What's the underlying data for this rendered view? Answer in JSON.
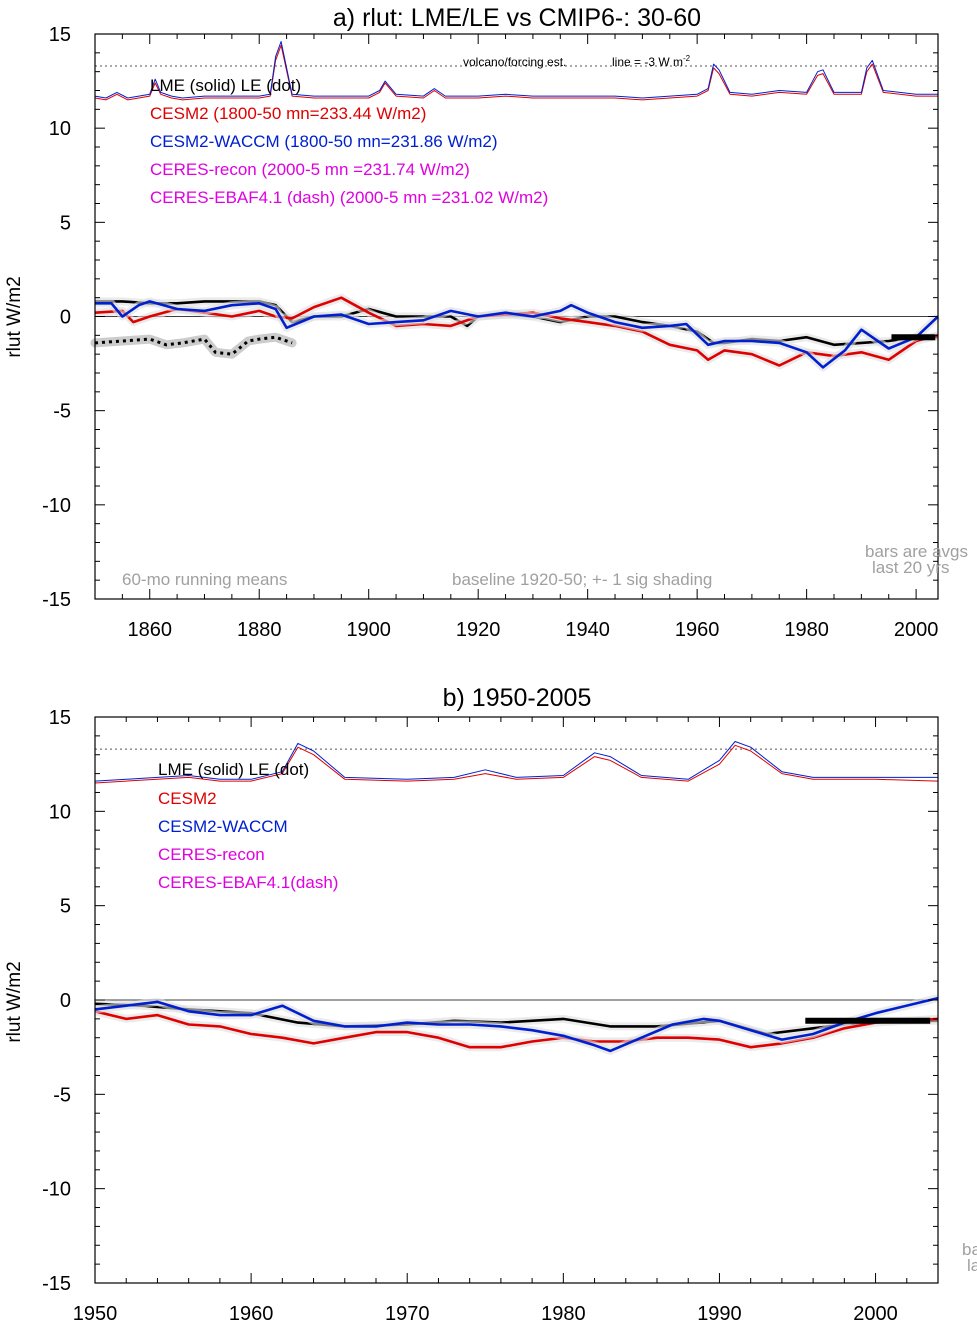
{
  "chart_data": [
    {
      "type": "line",
      "title": "a) rlut: LME/LE vs CMIP6-: 30-60",
      "ylabel": "rlut W/m2",
      "xlim": [
        1850,
        2004
      ],
      "ylim": [
        -15,
        15
      ],
      "xticks": [
        1860,
        1880,
        1900,
        1920,
        1940,
        1960,
        1980,
        2000
      ],
      "yticks": [
        15,
        10,
        5,
        0,
        -5,
        -10,
        -15
      ],
      "volcano_ref": 13.3,
      "annotations": {
        "volcano": "volcano/forcing est.",
        "line_note": "line = -3 W m",
        "line_note_sup": "-2",
        "running": "60-mo running means",
        "baseline": "baseline 1920-50; +- 1 sig shading",
        "bars1": "bars are avgs",
        "bars2": "last 20 yrs"
      },
      "legend": [
        {
          "text": "LME (solid)    LE (dot)",
          "color": "#000000"
        },
        {
          "text": "CESM2 (1800-50 mn=233.44 W/m2)",
          "color": "#e00000"
        },
        {
          "text": "CESM2-WACCM (1800-50 mn=231.86 W/m2)",
          "color": "#0020d0"
        },
        {
          "text": "CERES-recon (2000-5 mn =231.74 W/m2)",
          "color": "#e000e0"
        },
        {
          "text": "CERES-EBAF4.1 (dash) (2000-5 mn =231.02 W/m2)",
          "color": "#e000e0"
        }
      ],
      "series": [
        {
          "color": "#000000",
          "x": [
            1850,
            1855,
            1860,
            1865,
            1870,
            1875,
            1880,
            1883,
            1886,
            1890,
            1895,
            1900,
            1905,
            1910,
            1915,
            1918,
            1920,
            1925,
            1930,
            1935,
            1940,
            1945,
            1950,
            1955,
            1960,
            1963,
            1965,
            1970,
            1975,
            1980,
            1985,
            1990,
            1995,
            2000,
            2004
          ],
          "y": [
            0.8,
            0.8,
            0.7,
            0.7,
            0.8,
            0.8,
            0.8,
            0.6,
            -0.3,
            0.0,
            0.0,
            0.4,
            0.0,
            0.0,
            0.0,
            -0.5,
            0.0,
            0.1,
            0.0,
            -0.3,
            0.0,
            0.0,
            -0.3,
            -0.5,
            -0.8,
            -1.4,
            -1.4,
            -1.2,
            -1.3,
            -1.1,
            -1.5,
            -1.4,
            -1.3,
            -1.1,
            -1.1
          ]
        },
        {
          "color": "#e00000",
          "x": [
            1850,
            1855,
            1857,
            1860,
            1865,
            1870,
            1875,
            1880,
            1883,
            1886,
            1890,
            1895,
            1900,
            1905,
            1910,
            1915,
            1920,
            1925,
            1930,
            1935,
            1940,
            1945,
            1950,
            1955,
            1960,
            1962,
            1965,
            1970,
            1975,
            1980,
            1985,
            1990,
            1995,
            2000,
            2004
          ],
          "y": [
            0.2,
            0.3,
            -0.3,
            0.0,
            0.4,
            0.2,
            0.0,
            0.3,
            0.0,
            -0.1,
            0.5,
            1.0,
            0.2,
            -0.5,
            -0.4,
            -0.5,
            0.0,
            0.1,
            0.2,
            -0.1,
            -0.3,
            -0.5,
            -0.8,
            -1.5,
            -1.8,
            -2.3,
            -1.8,
            -2.0,
            -2.6,
            -1.9,
            -2.1,
            -1.9,
            -2.3,
            -1.3,
            -1.0
          ]
        },
        {
          "color": "#0020d0",
          "x": [
            1850,
            1853,
            1855,
            1858,
            1860,
            1865,
            1870,
            1875,
            1880,
            1883,
            1885,
            1890,
            1895,
            1900,
            1905,
            1910,
            1915,
            1920,
            1925,
            1930,
            1935,
            1937,
            1940,
            1945,
            1950,
            1955,
            1958,
            1962,
            1965,
            1970,
            1975,
            1980,
            1983,
            1987,
            1990,
            1995,
            2000,
            2004
          ],
          "y": [
            0.7,
            0.7,
            0.0,
            0.6,
            0.8,
            0.4,
            0.3,
            0.6,
            0.7,
            0.4,
            -0.6,
            0.0,
            0.1,
            -0.4,
            -0.3,
            -0.2,
            0.3,
            0.0,
            0.2,
            0.0,
            0.3,
            0.6,
            0.2,
            -0.3,
            -0.6,
            -0.5,
            -0.4,
            -1.5,
            -1.3,
            -1.3,
            -1.4,
            -1.9,
            -2.7,
            -1.8,
            -0.7,
            -1.7,
            -1.1,
            0.0
          ]
        },
        {
          "color": "#000000",
          "dotted": true,
          "width": 3,
          "x": [
            1850,
            1855,
            1860,
            1863,
            1866,
            1870,
            1872,
            1875,
            1878,
            1880,
            1883,
            1886
          ],
          "y": [
            -1.4,
            -1.3,
            -1.2,
            -1.5,
            -1.4,
            -1.2,
            -1.9,
            -2.0,
            -1.3,
            -1.2,
            -1.1,
            -1.4
          ]
        },
        {
          "color": "#e00000",
          "width": 1,
          "x": [
            1850,
            1852,
            1854,
            1856,
            1858,
            1860,
            1861,
            1862,
            1864,
            1866,
            1870,
            1875,
            1880,
            1882,
            1883,
            1884,
            1886,
            1890,
            1895,
            1900,
            1902,
            1903,
            1905,
            1910,
            1912,
            1914,
            1920,
            1925,
            1930,
            1935,
            1940,
            1945,
            1950,
            1955,
            1960,
            1962,
            1963,
            1964,
            1966,
            1970,
            1975,
            1980,
            1982,
            1983,
            1985,
            1990,
            1991,
            1992,
            1994,
            2000,
            2004
          ],
          "y": [
            11.6,
            11.5,
            11.8,
            11.5,
            11.6,
            11.7,
            12.4,
            11.8,
            11.6,
            11.5,
            11.6,
            11.6,
            11.6,
            11.7,
            13.6,
            14.4,
            11.7,
            11.6,
            11.6,
            11.6,
            11.9,
            12.4,
            11.7,
            11.6,
            12.0,
            11.6,
            11.6,
            11.7,
            11.6,
            11.6,
            11.6,
            11.6,
            11.5,
            11.6,
            11.7,
            12.0,
            13.2,
            12.9,
            11.8,
            11.7,
            11.9,
            11.8,
            12.8,
            12.9,
            11.8,
            11.8,
            13.0,
            13.4,
            11.9,
            11.7,
            11.7
          ]
        },
        {
          "color": "#0020d0",
          "width": 1,
          "x": [
            1850,
            1852,
            1854,
            1856,
            1858,
            1860,
            1861,
            1862,
            1864,
            1866,
            1870,
            1875,
            1880,
            1882,
            1883,
            1884,
            1886,
            1890,
            1895,
            1900,
            1902,
            1903,
            1905,
            1910,
            1912,
            1914,
            1920,
            1925,
            1930,
            1935,
            1940,
            1945,
            1950,
            1955,
            1960,
            1962,
            1963,
            1964,
            1966,
            1970,
            1975,
            1980,
            1982,
            1983,
            1985,
            1990,
            1991,
            1992,
            1994,
            2000,
            2004
          ],
          "y": [
            11.7,
            11.6,
            11.9,
            11.6,
            11.7,
            11.8,
            12.6,
            11.9,
            11.7,
            11.6,
            11.7,
            11.7,
            11.7,
            11.8,
            13.8,
            14.6,
            11.8,
            11.7,
            11.7,
            11.7,
            12.0,
            12.5,
            11.8,
            11.7,
            12.1,
            11.7,
            11.7,
            11.8,
            11.7,
            11.7,
            11.7,
            11.7,
            11.6,
            11.7,
            11.8,
            12.1,
            13.4,
            13.1,
            11.9,
            11.8,
            12.0,
            11.9,
            13.0,
            13.1,
            11.9,
            11.9,
            13.2,
            13.6,
            12.0,
            11.8,
            11.8
          ]
        }
      ]
    },
    {
      "type": "line",
      "title": "b) 1950-2005",
      "ylabel": "rlut W/m2",
      "xlim": [
        1950,
        2004
      ],
      "ylim": [
        -15,
        15
      ],
      "xticks": [
        1950,
        1960,
        1970,
        1980,
        1990,
        2000
      ],
      "yticks": [
        15,
        10,
        5,
        0,
        -5,
        -10,
        -15
      ],
      "volcano_ref": 13.3,
      "annotations": {
        "bars1": "ba",
        "bars2": "la"
      },
      "legend": [
        {
          "text": "LME (solid)      LE (dot)",
          "color": "#000000"
        },
        {
          "text": "CESM2",
          "color": "#e00000"
        },
        {
          "text": "CESM2-WACCM",
          "color": "#0020d0"
        },
        {
          "text": "CERES-recon",
          "color": "#e000e0"
        },
        {
          "text": "CERES-EBAF4.1(dash)",
          "color": "#e000e0"
        }
      ],
      "series": [
        {
          "color": "#000000",
          "x": [
            1950,
            1953,
            1956,
            1960,
            1963,
            1966,
            1970,
            1973,
            1976,
            1980,
            1983,
            1986,
            1990,
            1993,
            1996,
            2000,
            2004
          ],
          "y": [
            -0.2,
            -0.3,
            -0.5,
            -0.7,
            -1.2,
            -1.4,
            -1.3,
            -1.1,
            -1.2,
            -1.0,
            -1.4,
            -1.4,
            -1.1,
            -1.8,
            -1.5,
            -1.1,
            -1.1
          ]
        },
        {
          "color": "#e00000",
          "x": [
            1950,
            1952,
            1954,
            1956,
            1958,
            1960,
            1962,
            1964,
            1966,
            1968,
            1970,
            1972,
            1974,
            1976,
            1978,
            1980,
            1982,
            1984,
            1986,
            1988,
            1990,
            1992,
            1994,
            1996,
            1998,
            2000,
            2004
          ],
          "y": [
            -0.6,
            -1.0,
            -0.8,
            -1.3,
            -1.4,
            -1.8,
            -2.0,
            -2.3,
            -2.0,
            -1.7,
            -1.7,
            -2.0,
            -2.5,
            -2.5,
            -2.2,
            -2.0,
            -2.2,
            -2.2,
            -2.0,
            -2.0,
            -2.1,
            -2.5,
            -2.3,
            -2.0,
            -1.5,
            -1.2,
            -1.0
          ]
        },
        {
          "color": "#0020d0",
          "x": [
            1950,
            1952,
            1954,
            1956,
            1958,
            1960,
            1962,
            1964,
            1966,
            1968,
            1970,
            1972,
            1974,
            1976,
            1978,
            1980,
            1982,
            1983,
            1985,
            1987,
            1989,
            1990,
            1992,
            1994,
            1996,
            1998,
            2000,
            2004
          ],
          "y": [
            -0.5,
            -0.3,
            -0.1,
            -0.6,
            -0.8,
            -0.8,
            -0.3,
            -1.1,
            -1.4,
            -1.4,
            -1.2,
            -1.3,
            -1.3,
            -1.4,
            -1.6,
            -1.9,
            -2.4,
            -2.7,
            -2.0,
            -1.3,
            -1.0,
            -1.1,
            -1.6,
            -2.1,
            -1.8,
            -1.2,
            -0.7,
            0.1
          ]
        },
        {
          "color": "#e00000",
          "width": 1,
          "x": [
            1950,
            1952,
            1954,
            1956,
            1958,
            1960,
            1962,
            1963,
            1964,
            1966,
            1970,
            1973,
            1975,
            1977,
            1980,
            1982,
            1983,
            1985,
            1988,
            1990,
            1991,
            1992,
            1994,
            1996,
            2000,
            2004
          ],
          "y": [
            11.5,
            11.6,
            11.7,
            11.8,
            11.6,
            11.6,
            12.0,
            13.4,
            13.0,
            11.7,
            11.6,
            11.7,
            12.0,
            11.7,
            11.8,
            12.9,
            12.7,
            11.8,
            11.6,
            12.5,
            13.5,
            13.2,
            12.0,
            11.7,
            11.7,
            11.6
          ]
        },
        {
          "color": "#0020d0",
          "width": 1,
          "x": [
            1950,
            1952,
            1954,
            1956,
            1958,
            1960,
            1962,
            1963,
            1964,
            1966,
            1970,
            1973,
            1975,
            1977,
            1980,
            1982,
            1983,
            1985,
            1988,
            1990,
            1991,
            1992,
            1994,
            1996,
            2000,
            2004
          ],
          "y": [
            11.6,
            11.7,
            11.8,
            11.9,
            11.7,
            11.7,
            12.1,
            13.6,
            13.2,
            11.8,
            11.7,
            11.8,
            12.2,
            11.8,
            11.9,
            13.1,
            12.9,
            11.9,
            11.7,
            12.7,
            13.7,
            13.4,
            12.1,
            11.8,
            11.8,
            11.8
          ]
        }
      ]
    }
  ]
}
